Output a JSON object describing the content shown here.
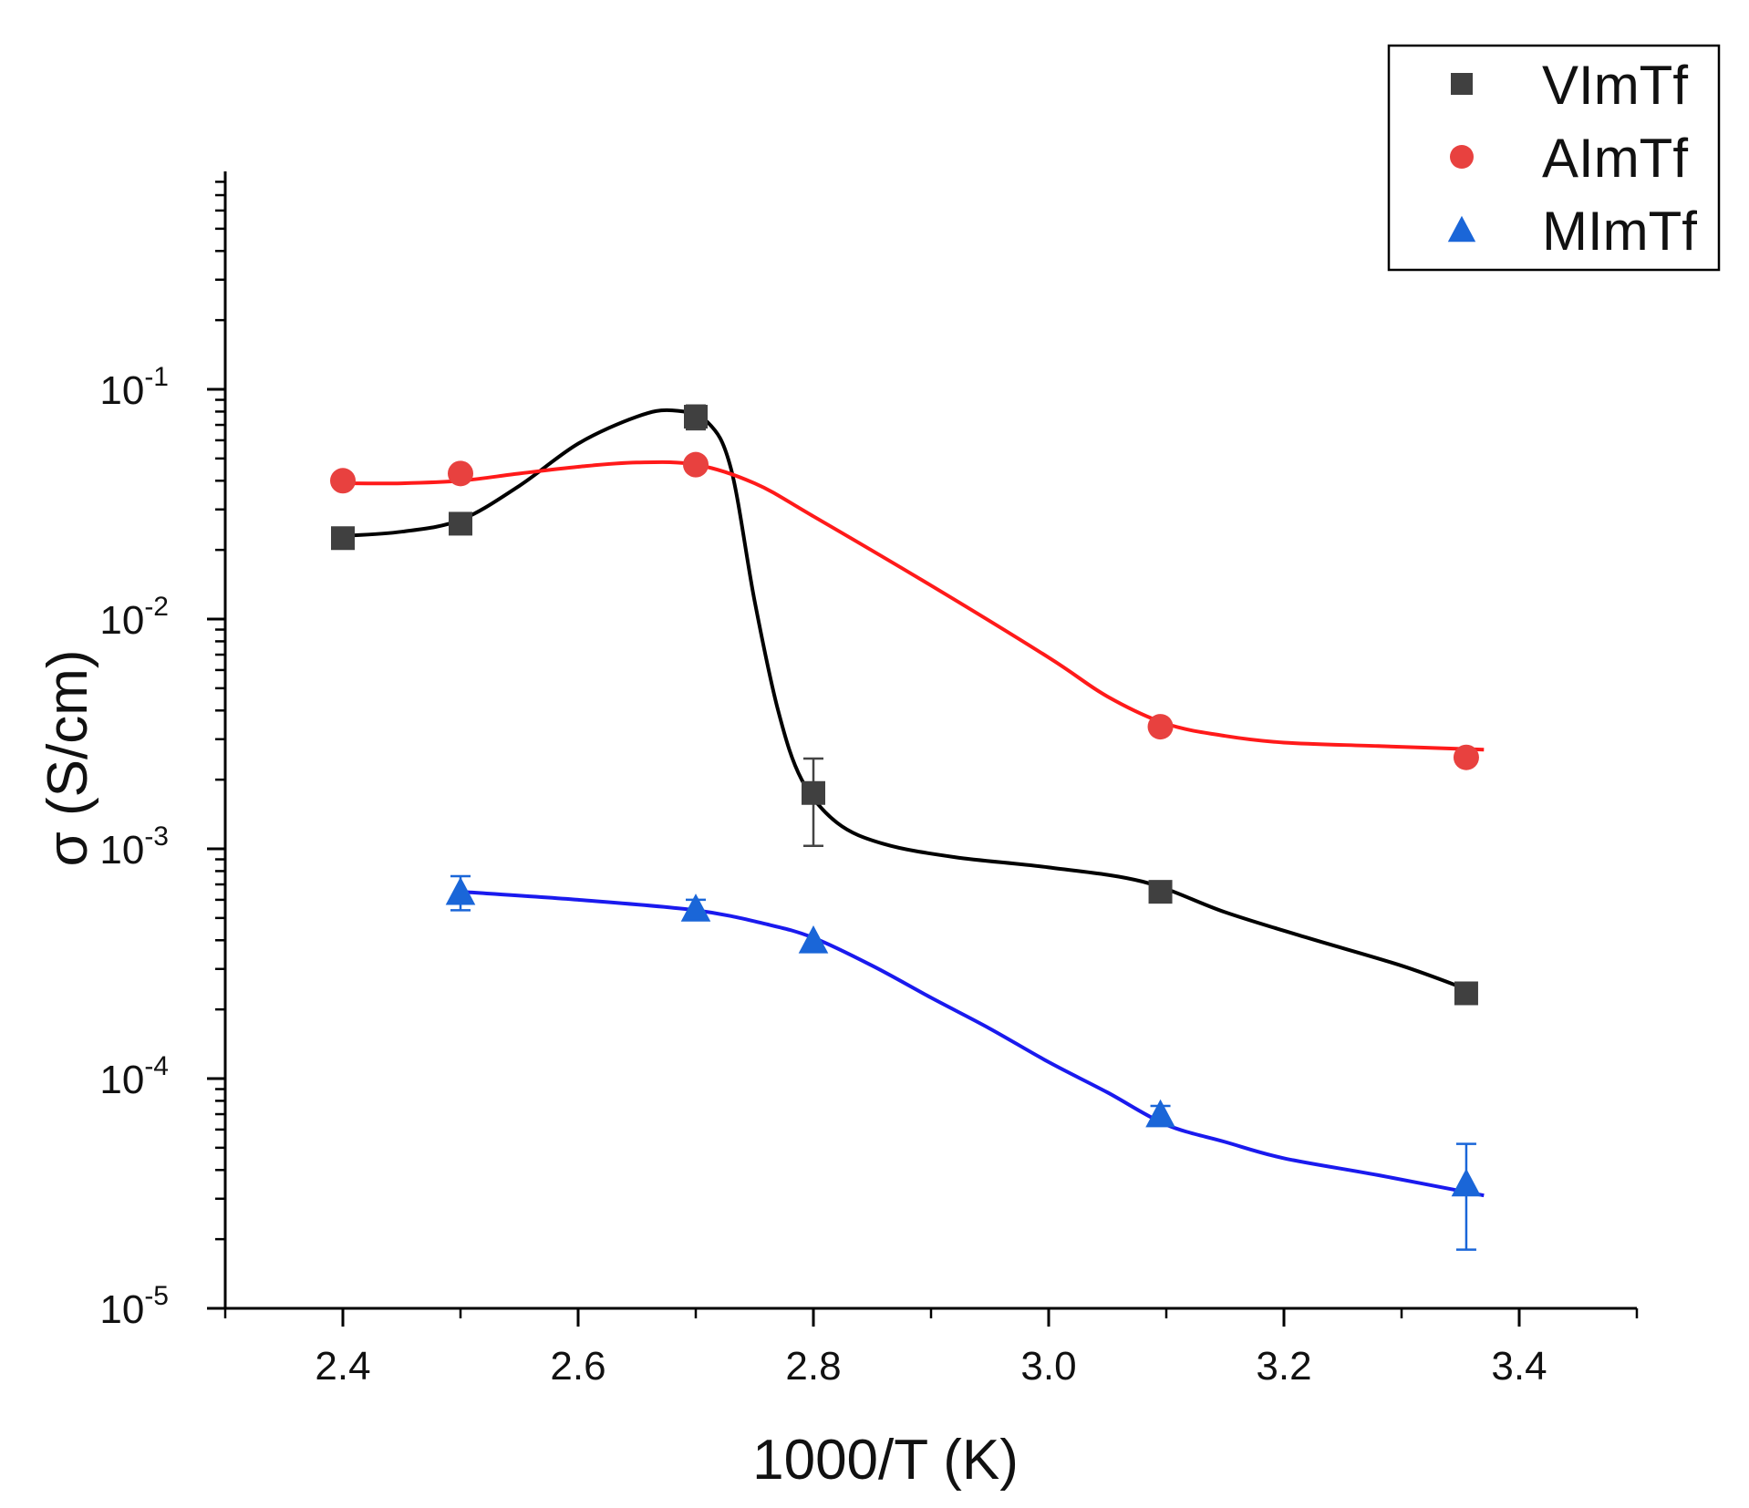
{
  "chart_data": {
    "type": "scatter",
    "xlabel": "1000/T (K)",
    "ylabel": "σ (S/cm)",
    "xlim": [
      2.3,
      3.5
    ],
    "ylim": [
      1e-05,
      1
    ],
    "yscale": "log",
    "x_ticks": [
      2.4,
      2.6,
      2.8,
      3.0,
      3.2,
      3.4
    ],
    "x_tick_labels": [
      "2.4",
      "2.6",
      "2.8",
      "3.0",
      "3.2",
      "3.4"
    ],
    "y_ticks": [
      1e-05,
      0.0001,
      0.001,
      0.01,
      0.1
    ],
    "y_tick_labels": [
      {
        "base": "10",
        "exp": "-5"
      },
      {
        "base": "10",
        "exp": "-4"
      },
      {
        "base": "10",
        "exp": "-3"
      },
      {
        "base": "10",
        "exp": "-2"
      },
      {
        "base": "10",
        "exp": "-1"
      }
    ],
    "legend_position": "top-right",
    "series": [
      {
        "name": "VImTf",
        "color": "#404040",
        "line_color": "#000000",
        "marker": "square",
        "x": [
          2.4,
          2.5,
          2.7,
          2.8,
          3.095,
          3.355
        ],
        "y": [
          0.0225,
          0.026,
          0.076,
          0.00175,
          0.00065,
          0.000235
        ],
        "err": [
          0,
          0,
          0.009,
          0.00072,
          0,
          0
        ],
        "curve_x": [
          2.4,
          2.45,
          2.5,
          2.55,
          2.6,
          2.65,
          2.68,
          2.71,
          2.73,
          2.75,
          2.77,
          2.79,
          2.82,
          2.86,
          2.92,
          3.0,
          3.08,
          3.15,
          3.22,
          3.3,
          3.355
        ],
        "curve_y": [
          0.023,
          0.024,
          0.027,
          0.038,
          0.058,
          0.076,
          0.081,
          0.072,
          0.045,
          0.012,
          0.004,
          0.002,
          0.0013,
          0.00105,
          0.00092,
          0.00083,
          0.00072,
          0.00053,
          0.00041,
          0.00031,
          0.000245
        ]
      },
      {
        "name": "AImTf",
        "color": "#e8413f",
        "line_color": "#ff1a1a",
        "marker": "circle",
        "x": [
          2.4,
          2.5,
          2.7,
          3.095,
          3.355
        ],
        "y": [
          0.04,
          0.043,
          0.047,
          0.0034,
          0.0025
        ],
        "err": [
          0,
          0,
          0,
          0,
          0
        ],
        "curve_x": [
          2.4,
          2.45,
          2.5,
          2.55,
          2.6,
          2.65,
          2.7,
          2.75,
          2.8,
          2.9,
          3.0,
          3.05,
          3.1,
          3.15,
          3.2,
          3.28,
          3.37
        ],
        "curve_y": [
          0.039,
          0.039,
          0.04,
          0.043,
          0.046,
          0.048,
          0.047,
          0.039,
          0.028,
          0.014,
          0.0068,
          0.0046,
          0.0035,
          0.0031,
          0.0029,
          0.0028,
          0.0027
        ]
      },
      {
        "name": "MImTf",
        "color": "#1a66d8",
        "line_color": "#1a1aee",
        "marker": "triangle",
        "x": [
          2.5,
          2.7,
          2.8,
          3.095,
          3.355
        ],
        "y": [
          0.00065,
          0.00055,
          0.0004,
          7e-05,
          3.5e-05
        ],
        "err": [
          0.00011,
          5e-05,
          0,
          6e-06,
          1.7e-05
        ],
        "curve_x": [
          2.5,
          2.6,
          2.7,
          2.76,
          2.8,
          2.85,
          2.9,
          2.95,
          3.0,
          3.05,
          3.1,
          3.15,
          3.2,
          3.28,
          3.37
        ],
        "curve_y": [
          0.00065,
          0.0006,
          0.00054,
          0.00047,
          0.00041,
          0.00031,
          0.000225,
          0.000165,
          0.000118,
          8.7e-05,
          6.3e-05,
          5.3e-05,
          4.5e-05,
          3.8e-05,
          3.1e-05
        ]
      }
    ]
  }
}
